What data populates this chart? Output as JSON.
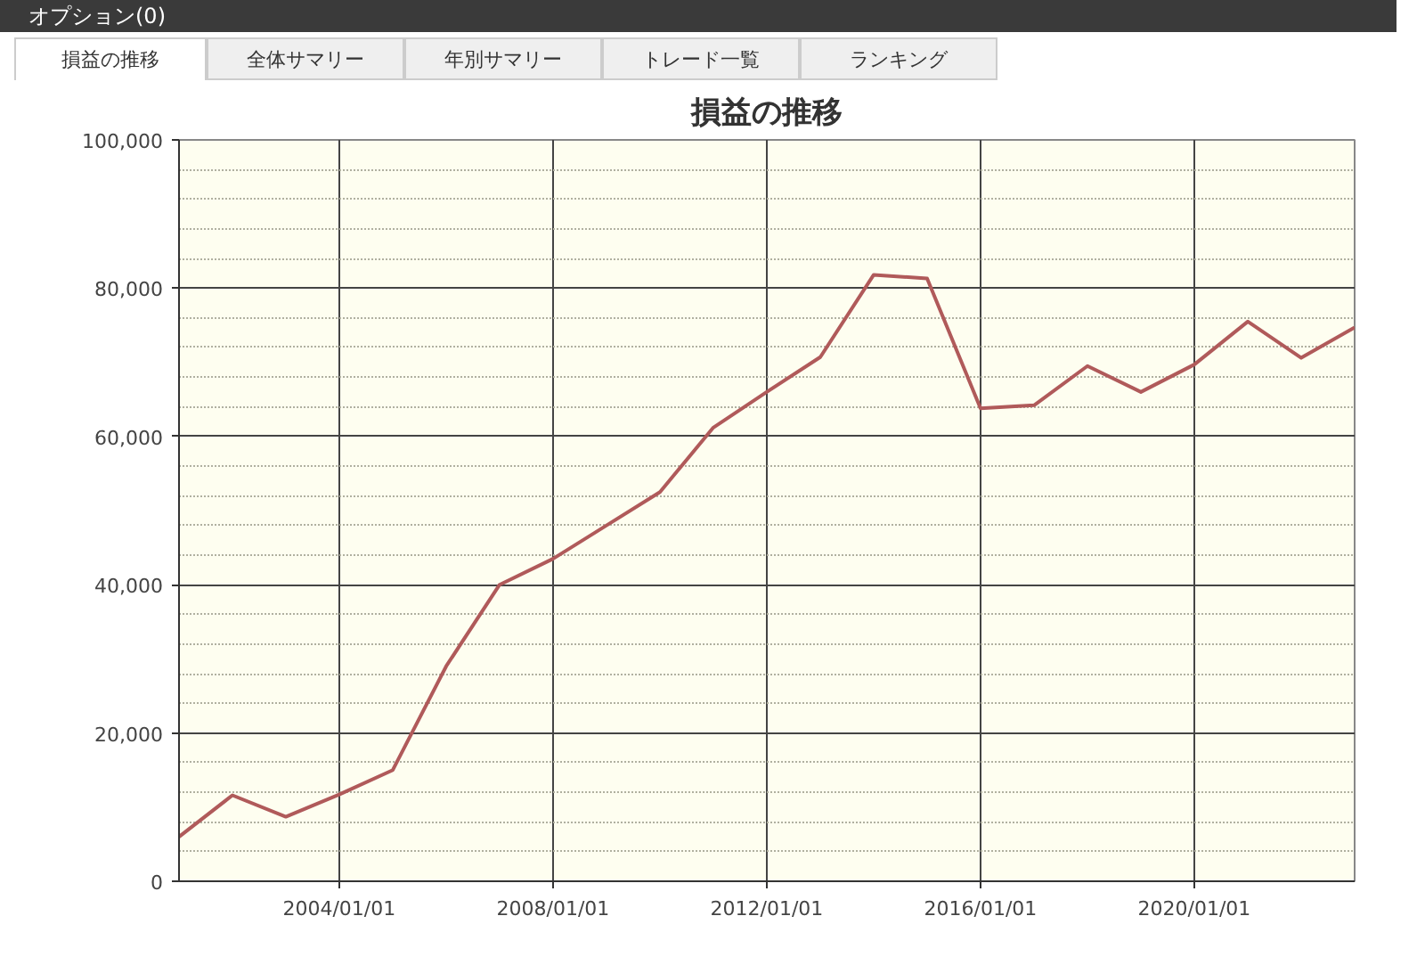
{
  "chart_data": {
    "type": "line",
    "title": "損益の推移",
    "annotations": [
      "オプション(0)",
      "損益の推移",
      "全体サマリー",
      "年別サマリー",
      "トレード一覧",
      "ランキング"
    ],
    "x": [
      "2001-01-01",
      "2002-01-01",
      "2003-01-01",
      "2004-01-01",
      "2005-01-01",
      "2006-01-01",
      "2007-01-01",
      "2008-01-01",
      "2009-01-01",
      "2010-01-01",
      "2011-01-01",
      "2012-01-01",
      "2013-01-01",
      "2014-01-01",
      "2015-01-01",
      "2016-01-01",
      "2017-01-01",
      "2018-01-01",
      "2019-01-01",
      "2020-01-01",
      "2021-01-01",
      "2022-01-01",
      "2023-01-01"
    ],
    "series": [
      {
        "color": "#b05a5a",
        "values": [
          6000,
          11600,
          8700,
          11700,
          15000,
          29000,
          40000,
          43500,
          48000,
          52500,
          61200,
          66000,
          70700,
          81800,
          81300,
          63800,
          64200,
          69500,
          66000,
          69700,
          75500,
          70600,
          74700
        ]
      }
    ],
    "xlim": [
      "2001-01-01",
      "2023-01-01"
    ],
    "xticks": [
      {
        "value": "2004-01-01",
        "label": "2004/01/01"
      },
      {
        "value": "2008-01-01",
        "label": "2008/01/01"
      },
      {
        "value": "2012-01-01",
        "label": "2012/01/01"
      },
      {
        "value": "2016-01-01",
        "label": "2016/01/01"
      },
      {
        "value": "2020-01-01",
        "label": "2020/01/01"
      }
    ],
    "ylim": [
      0,
      100000
    ],
    "yticks": [
      0,
      {
        "value": 20000,
        "label": "20,000"
      },
      {
        "value": 40000,
        "label": "40,000"
      },
      {
        "value": 60000,
        "label": "60,000"
      },
      {
        "value": 80000,
        "label": "80,000"
      },
      {
        "value": 100000,
        "label": "100,000"
      }
    ],
    "grid": true,
    "marker": "none",
    "line_style": "solid"
  }
}
